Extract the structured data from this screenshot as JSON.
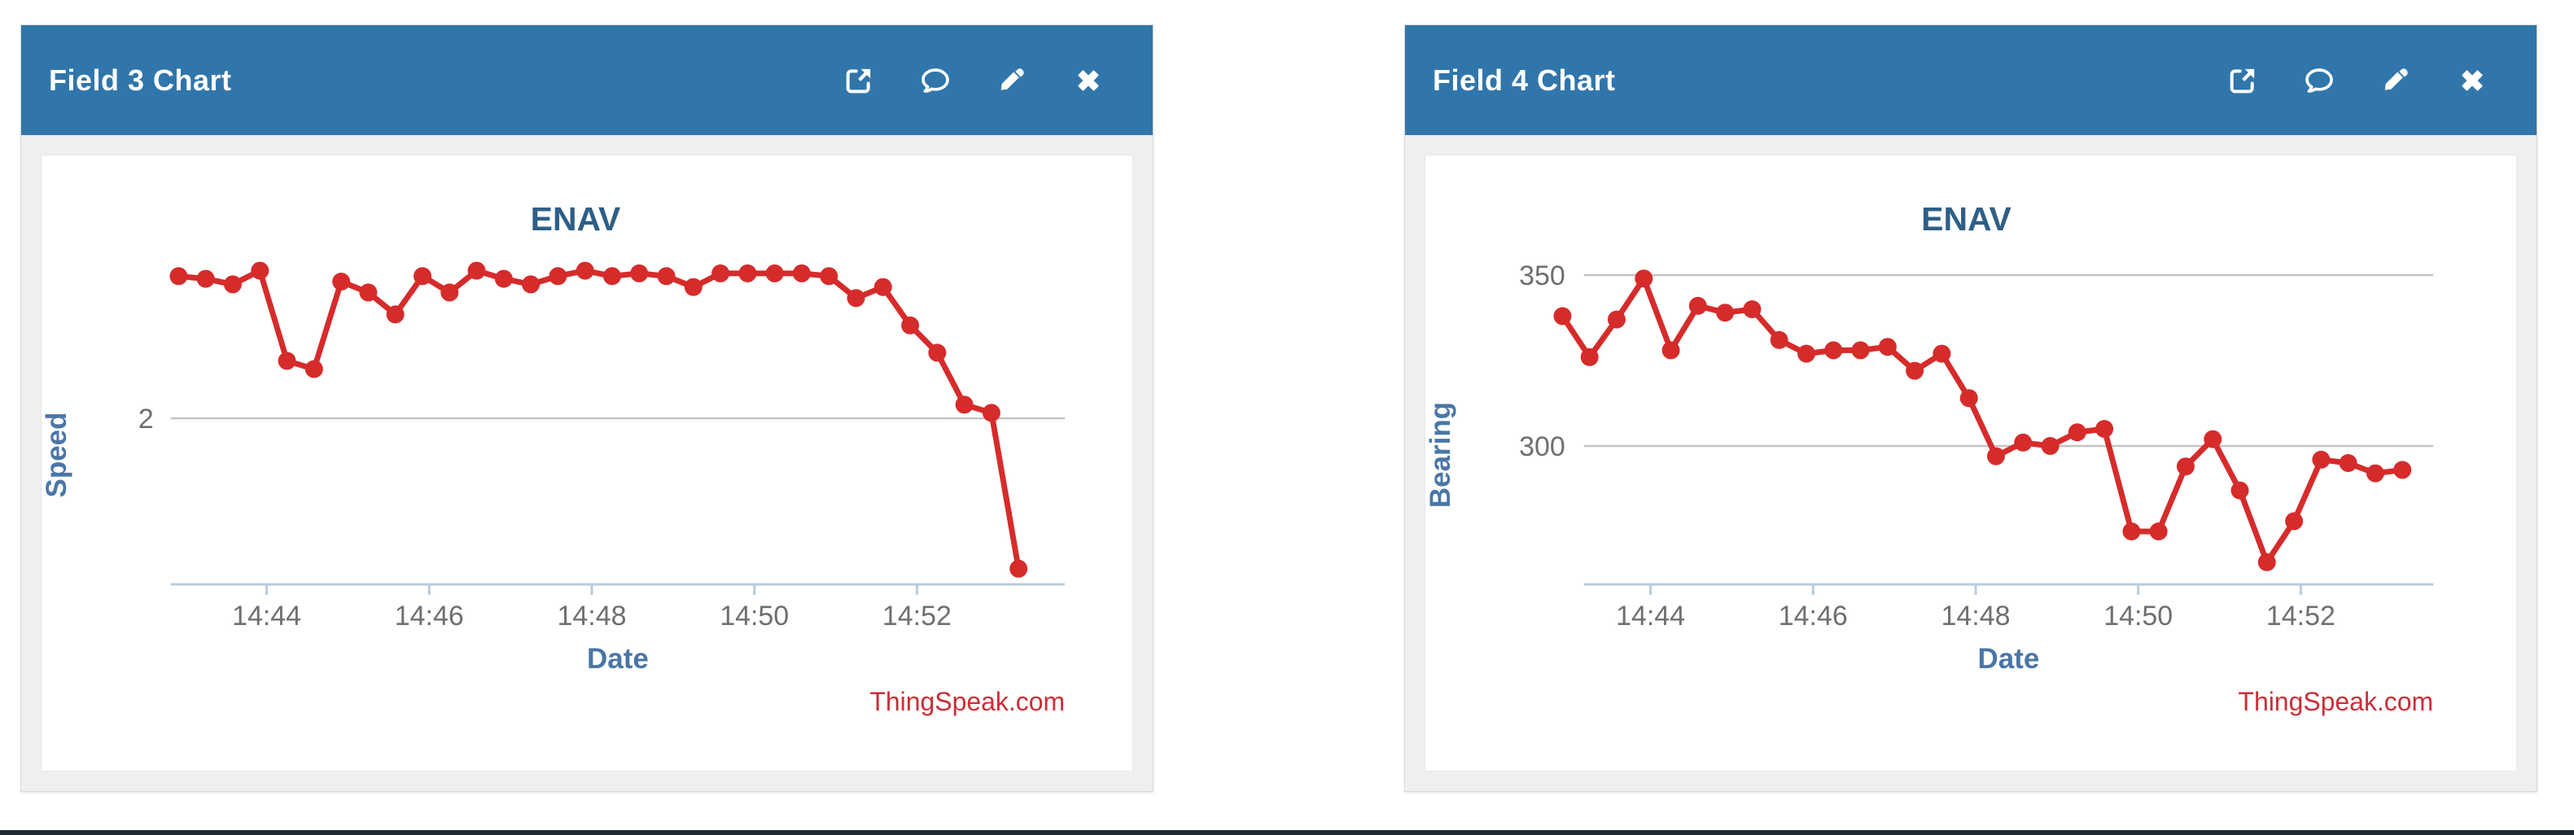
{
  "theme": {
    "page_bg": "#ffffff",
    "bottom_bar": "#1e2a33",
    "header_blue": "#3076ab",
    "header_text": "#ffffff",
    "widget_body": "#efefef",
    "panel_bg": "#ffffff",
    "title_color": "#2d5f87",
    "axis_label_color": "#4a76a6",
    "tick_label_color": "#6f6f6f",
    "gridline_color": "#c3c3c3",
    "axis_line_color": "#b9cdde",
    "series_color": "#d62b2b",
    "watermark_color": "#ca2f38"
  },
  "widgets": [
    {
      "header_title": "Field 3 Chart",
      "icons": [
        "external-link-icon",
        "comment-icon",
        "edit-icon",
        "close-icon"
      ]
    },
    {
      "header_title": "Field 4 Chart",
      "icons": [
        "external-link-icon",
        "comment-icon",
        "edit-icon",
        "close-icon"
      ]
    }
  ],
  "chart_data": [
    {
      "type": "line",
      "title": "ENAV",
      "xlabel": "Date",
      "ylabel": "Speed",
      "watermark": "ThingSpeak.com",
      "legend": false,
      "grid": true,
      "x_tick_labels": [
        "14:44",
        "14:46",
        "14:48",
        "14:50",
        "14:52"
      ],
      "y_tick_values": [
        2
      ],
      "ylim": [
        1.4,
        2.9
      ],
      "times": [
        "14:42:55",
        "14:43:15",
        "14:43:35",
        "14:43:55",
        "14:44:15",
        "14:44:35",
        "14:44:55",
        "14:45:15",
        "14:45:35",
        "14:45:55",
        "14:46:15",
        "14:46:35",
        "14:46:55",
        "14:47:15",
        "14:47:35",
        "14:47:55",
        "14:48:15",
        "14:48:35",
        "14:48:55",
        "14:49:15",
        "14:49:35",
        "14:49:55",
        "14:50:15",
        "14:50:35",
        "14:50:55",
        "14:51:15",
        "14:51:35",
        "14:51:55",
        "14:52:15",
        "14:52:35",
        "14:52:55",
        "14:53:15"
      ],
      "values": [
        2.52,
        2.51,
        2.49,
        2.54,
        2.21,
        2.18,
        2.5,
        2.46,
        2.38,
        2.52,
        2.46,
        2.54,
        2.51,
        2.49,
        2.52,
        2.54,
        2.52,
        2.53,
        2.52,
        2.48,
        2.53,
        2.53,
        2.53,
        2.53,
        2.52,
        2.44,
        2.48,
        2.34,
        2.24,
        2.05,
        2.02,
        1.45
      ]
    },
    {
      "type": "line",
      "title": "ENAV",
      "xlabel": "Date",
      "ylabel": "Bearing",
      "watermark": "ThingSpeak.com",
      "legend": false,
      "grid": true,
      "x_tick_labels": [
        "14:44",
        "14:46",
        "14:48",
        "14:50",
        "14:52"
      ],
      "y_tick_values": [
        300,
        350
      ],
      "ylim": [
        258,
        360
      ],
      "times": [
        "14:42:55",
        "14:43:15",
        "14:43:35",
        "14:43:55",
        "14:44:15",
        "14:44:35",
        "14:44:55",
        "14:45:15",
        "14:45:35",
        "14:45:55",
        "14:46:15",
        "14:46:35",
        "14:46:55",
        "14:47:15",
        "14:47:35",
        "14:47:55",
        "14:48:15",
        "14:48:35",
        "14:48:55",
        "14:49:15",
        "14:49:35",
        "14:49:55",
        "14:50:15",
        "14:50:35",
        "14:50:55",
        "14:51:15",
        "14:51:35",
        "14:51:55",
        "14:52:15",
        "14:52:35",
        "14:52:55",
        "14:53:15"
      ],
      "values": [
        338,
        326,
        337,
        349,
        328,
        341,
        339,
        340,
        331,
        327,
        328,
        328,
        329,
        322,
        327,
        314,
        297,
        301,
        300,
        304,
        305,
        275,
        275,
        294,
        302,
        287,
        266,
        278,
        296,
        295,
        292,
        293
      ]
    }
  ]
}
